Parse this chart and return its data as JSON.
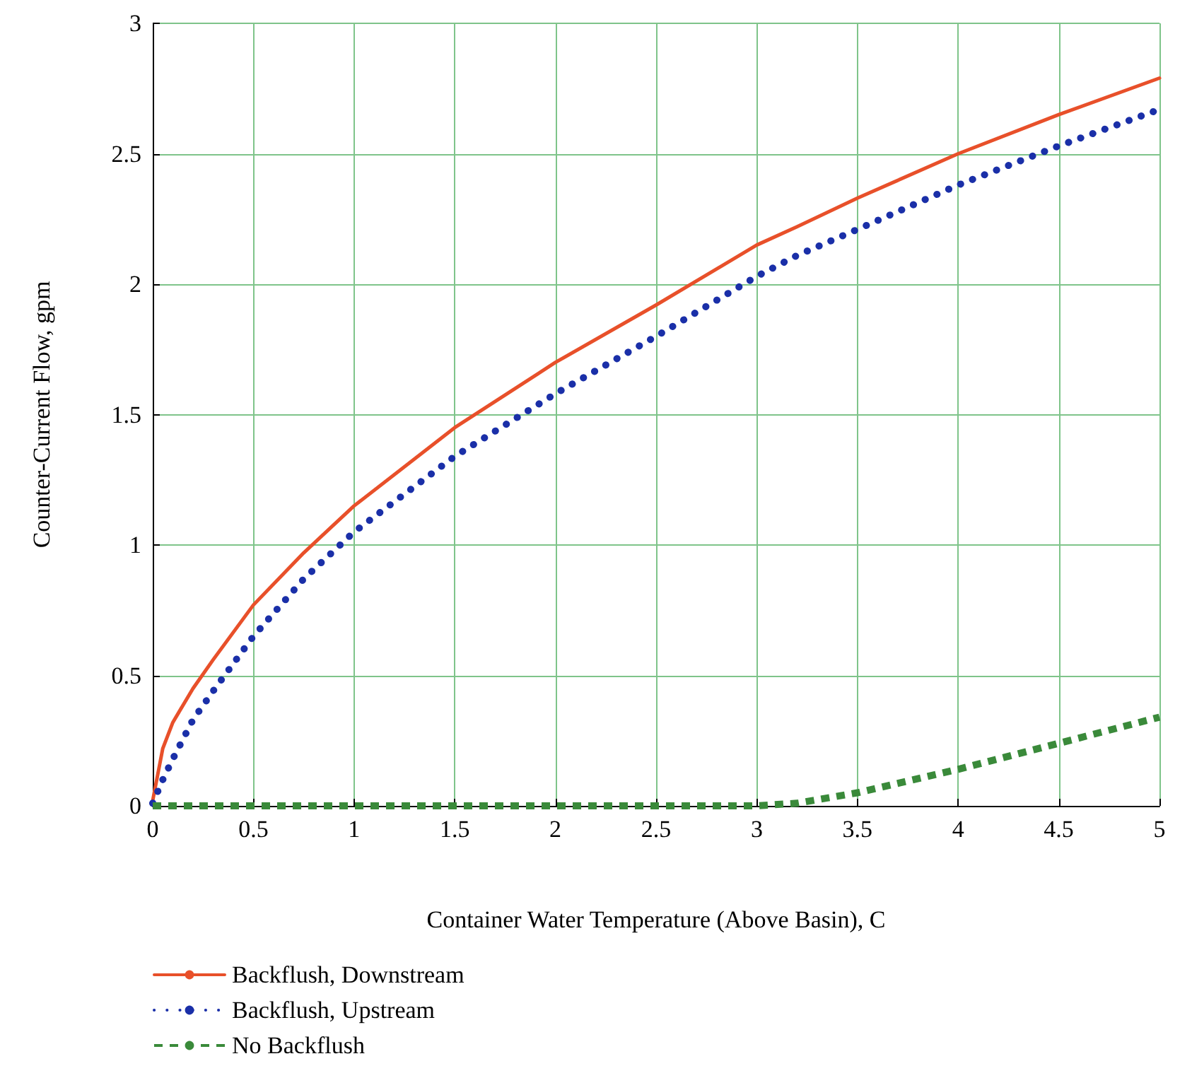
{
  "chart_data": {
    "type": "line",
    "xlabel": "Container Water Temperature (Above Basin), C",
    "ylabel": "Counter-Current Flow, gpm",
    "x": [
      0,
      0.05,
      0.1,
      0.2,
      0.3,
      0.5,
      0.75,
      1,
      1.5,
      2,
      2.5,
      3,
      3.2,
      3.5,
      4,
      4.5,
      5
    ],
    "series": [
      {
        "name": "Backflush, Downstream",
        "color": "#e8502a",
        "line_style": "solid",
        "values": [
          0.02,
          0.22,
          0.32,
          0.45,
          0.56,
          0.77,
          0.97,
          1.15,
          1.45,
          1.7,
          1.92,
          2.15,
          2.22,
          2.33,
          2.5,
          2.65,
          2.79
        ]
      },
      {
        "name": "Backflush, Upstream",
        "color": "#1a2fa8",
        "line_style": "dotted",
        "values": [
          0.01,
          0.1,
          0.18,
          0.33,
          0.44,
          0.65,
          0.87,
          1.05,
          1.34,
          1.58,
          1.8,
          2.03,
          2.11,
          2.21,
          2.38,
          2.53,
          2.67
        ]
      },
      {
        "name": "No Backflush",
        "color": "#3a8a3a",
        "line_style": "dashed",
        "values": [
          0,
          0,
          0,
          0,
          0,
          0,
          0,
          0,
          0,
          0,
          0,
          0,
          0.01,
          0.05,
          0.14,
          0.24,
          0.34
        ]
      }
    ],
    "xlim": [
      0,
      5
    ],
    "xticks": [
      0,
      0.5,
      1,
      1.5,
      2,
      2.5,
      3,
      3.5,
      4,
      4.5,
      5
    ],
    "ylim": [
      0,
      3
    ],
    "yticks": [
      0,
      0.5,
      1,
      1.5,
      2,
      2.5,
      3
    ],
    "grid": true,
    "legend": "bottom left",
    "marker": "none"
  }
}
